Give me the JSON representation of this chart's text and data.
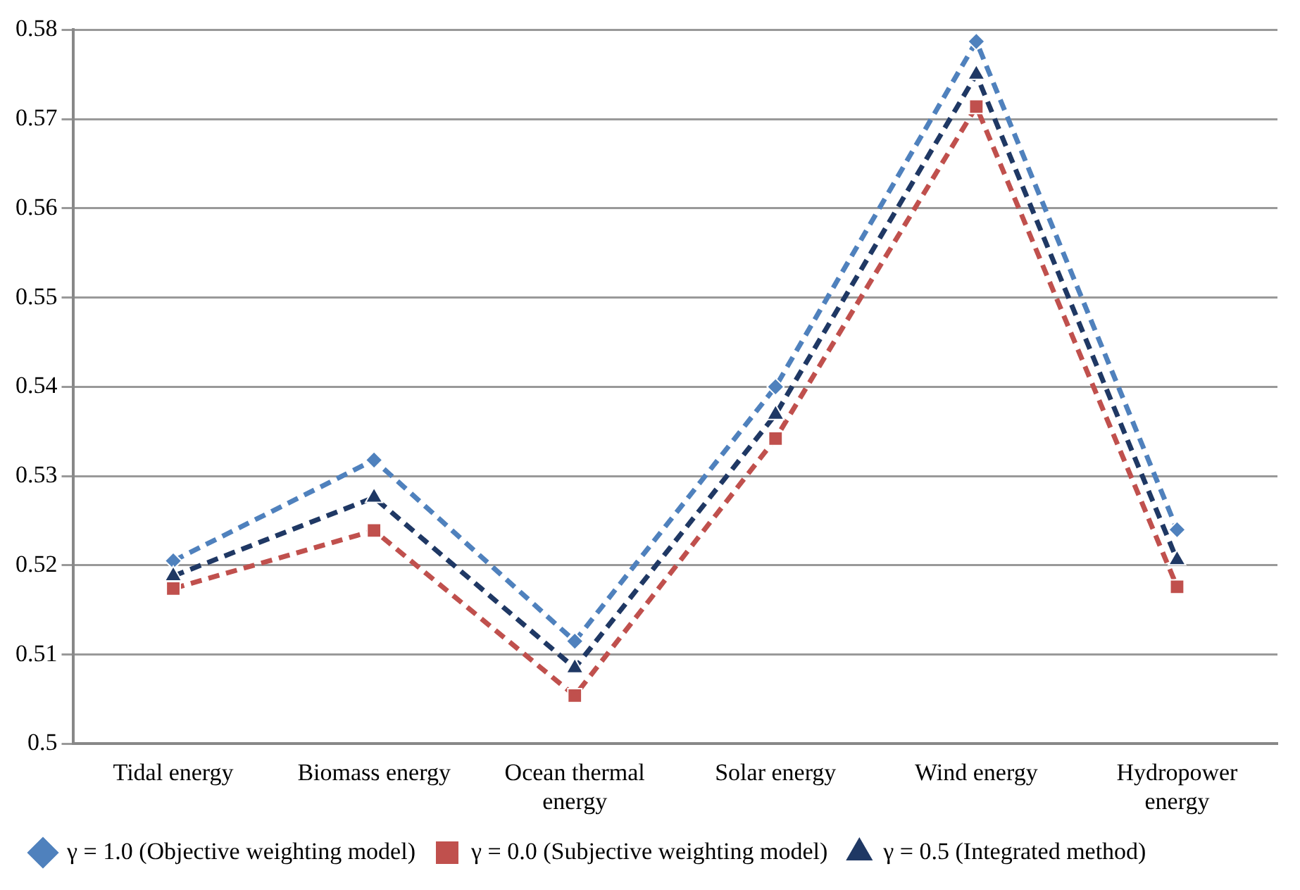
{
  "chart_data": {
    "type": "line",
    "categories": [
      "Tidal energy",
      "Biomass energy",
      "Ocean thermal energy",
      "Solar energy",
      "Wind energy",
      "Hydropower energy"
    ],
    "series": [
      {
        "name": "γ = 1.0 (Objective weighting model)",
        "color": "#4f81bd",
        "marker": "diamond",
        "values": [
          0.5205,
          0.5318,
          0.5115,
          0.54,
          0.5787,
          0.524
        ]
      },
      {
        "name": "γ = 0.0 (Subjective weighting model)",
        "color": "#c0504d",
        "marker": "square",
        "values": [
          0.5174,
          0.5239,
          0.5054,
          0.5342,
          0.5714,
          0.5176
        ]
      },
      {
        "name": "γ = 0.5 (Integrated method)",
        "color": "#1f3864",
        "marker": "triangle",
        "values": [
          0.5188,
          0.5276,
          0.5085,
          0.5369,
          0.575,
          0.5206
        ]
      }
    ],
    "ylim": [
      0.5,
      0.58
    ],
    "yticks": [
      0.5,
      0.51,
      0.52,
      0.53,
      0.54,
      0.55,
      0.56,
      0.57,
      0.58
    ],
    "grid": "y",
    "legend": "bottom",
    "line_style": "dashed"
  }
}
